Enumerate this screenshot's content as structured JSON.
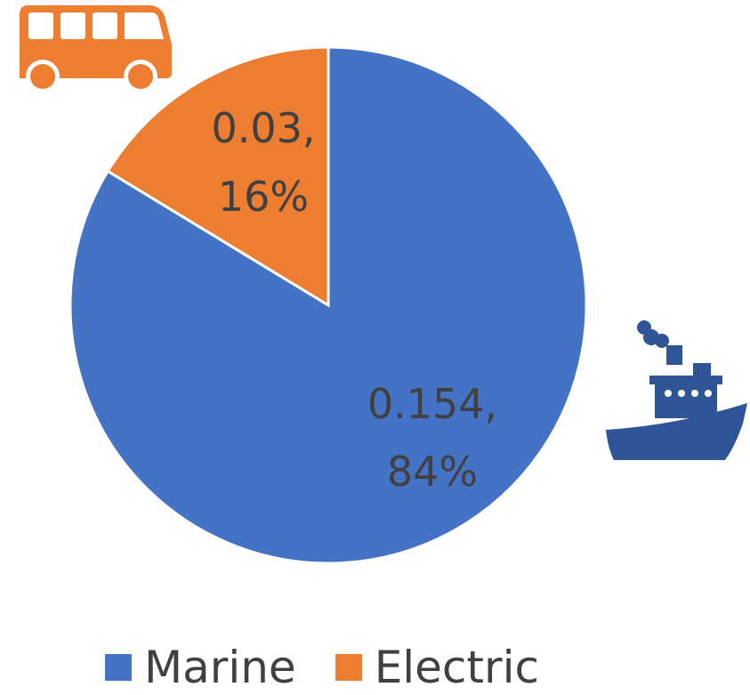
{
  "chart_data": {
    "type": "pie",
    "slices": [
      {
        "name": "Marine",
        "value": 0.154,
        "value_label": "0.154,",
        "percent_label": "84%",
        "color": "#4472C4",
        "icon": "ship-icon"
      },
      {
        "name": "Electric",
        "value": 0.03,
        "value_label": "0.03,",
        "percent_label": "16%",
        "color": "#ED7D31",
        "icon": "bus-icon"
      }
    ],
    "start_angle_deg": 0,
    "direction": "clockwise",
    "legend_position": "bottom",
    "title": ""
  }
}
